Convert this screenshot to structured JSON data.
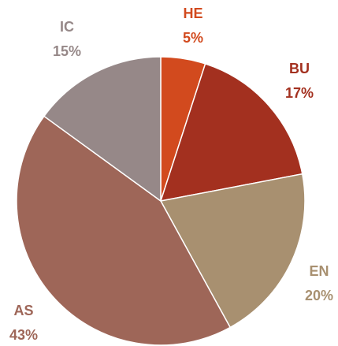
{
  "chart_data": {
    "type": "pie",
    "categories": [
      "HE",
      "BU",
      "EN",
      "AS",
      "IC"
    ],
    "values": [
      5,
      17,
      20,
      43,
      15
    ],
    "value_labels": [
      "5%",
      "17%",
      "20%",
      "43%",
      "15%"
    ],
    "colors": [
      "#d24a1e",
      "#a3301f",
      "#a89070",
      "#9e6658",
      "#968888"
    ]
  }
}
